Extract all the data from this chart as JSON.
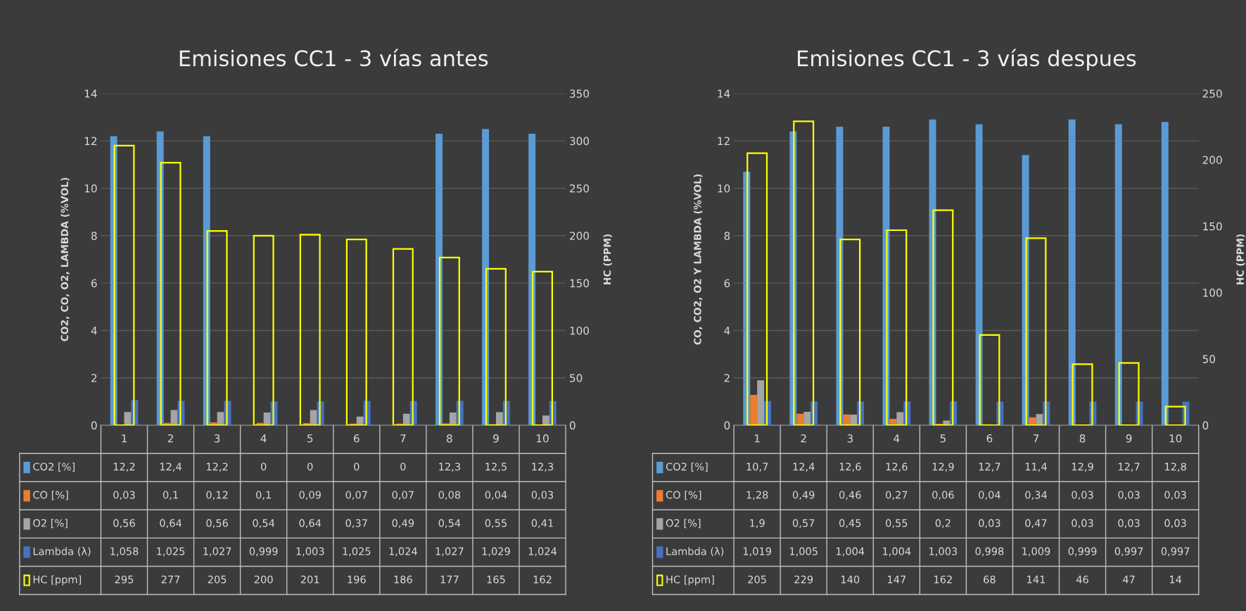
{
  "chart_data": [
    {
      "type": "bar",
      "title": "Emisiones CC1 - 3 vías antes",
      "ylabel": "CO2, CO, O2, LAMBDA (%VOL)",
      "y2label": "HC (PPM)",
      "categories": [
        "1",
        "2",
        "3",
        "4",
        "5",
        "6",
        "7",
        "8",
        "9",
        "10"
      ],
      "ylim": [
        0,
        14
      ],
      "yticks": [
        0,
        2,
        4,
        6,
        8,
        10,
        12,
        14
      ],
      "y2lim": [
        0,
        350
      ],
      "y2ticks": [
        0,
        50,
        100,
        150,
        200,
        250,
        300,
        350
      ],
      "grid": "y",
      "legend": "bottom",
      "series": [
        {
          "name": "CO2 [%]",
          "color": "#5b9bd5",
          "values": [
            12.2,
            12.4,
            12.2,
            0,
            0,
            0,
            0,
            12.3,
            12.5,
            12.3
          ],
          "value_labels": [
            "12,2",
            "12,4",
            "12,2",
            "0",
            "0",
            "0",
            "0",
            "12,3",
            "12,5",
            "12,3"
          ]
        },
        {
          "name": "CO [%]",
          "color": "#ed7d31",
          "values": [
            0.03,
            0.1,
            0.12,
            0.1,
            0.09,
            0.07,
            0.07,
            0.08,
            0.04,
            0.03
          ],
          "value_labels": [
            "0,03",
            "0,1",
            "0,12",
            "0,1",
            "0,09",
            "0,07",
            "0,07",
            "0,08",
            "0,04",
            "0,03"
          ]
        },
        {
          "name": "O2 [%]",
          "color": "#a5a5a5",
          "values": [
            0.56,
            0.64,
            0.56,
            0.54,
            0.64,
            0.37,
            0.49,
            0.54,
            0.55,
            0.41
          ],
          "value_labels": [
            "0,56",
            "0,64",
            "0,56",
            "0,54",
            "0,64",
            "0,37",
            "0,49",
            "0,54",
            "0,55",
            "0,41"
          ]
        },
        {
          "name": "Lambda (λ)",
          "color": "#4472c4",
          "values": [
            1.058,
            1.025,
            1.027,
            0.999,
            1.003,
            1.025,
            1.024,
            1.027,
            1.029,
            1.024
          ],
          "value_labels": [
            "1,058",
            "1,025",
            "1,027",
            "0,999",
            "1,003",
            "1,025",
            "1,024",
            "1,027",
            "1,029",
            "1,024"
          ]
        },
        {
          "name": "HC [ppm]",
          "color": "#ffff00",
          "axis": "y2",
          "values": [
            295,
            277,
            205,
            200,
            201,
            196,
            186,
            177,
            165,
            162
          ],
          "value_labels": [
            "295",
            "277",
            "205",
            "200",
            "201",
            "196",
            "186",
            "177",
            "165",
            "162"
          ]
        }
      ]
    },
    {
      "type": "bar",
      "title": "Emisiones CC1 - 3 vías despues",
      "ylabel": "CO, CO2, O2 Y LAMBDA (%VOL)",
      "y2label": "HC (PPM)",
      "categories": [
        "1",
        "2",
        "3",
        "4",
        "5",
        "6",
        "7",
        "8",
        "9",
        "10"
      ],
      "ylim": [
        0,
        14
      ],
      "yticks": [
        0,
        2,
        4,
        6,
        8,
        10,
        12,
        14
      ],
      "y2lim": [
        0,
        250
      ],
      "y2ticks": [
        0,
        50,
        100,
        150,
        200,
        250
      ],
      "grid": "y",
      "legend": "bottom",
      "series": [
        {
          "name": "CO2 [%]",
          "color": "#5b9bd5",
          "values": [
            10.7,
            12.4,
            12.6,
            12.6,
            12.9,
            12.7,
            11.4,
            12.9,
            12.7,
            12.8
          ],
          "value_labels": [
            "10,7",
            "12,4",
            "12,6",
            "12,6",
            "12,9",
            "12,7",
            "11,4",
            "12,9",
            "12,7",
            "12,8"
          ]
        },
        {
          "name": "CO [%]",
          "color": "#ed7d31",
          "values": [
            1.28,
            0.49,
            0.46,
            0.27,
            0.06,
            0.04,
            0.34,
            0.03,
            0.03,
            0.03
          ],
          "value_labels": [
            "1,28",
            "0,49",
            "0,46",
            "0,27",
            "0,06",
            "0,04",
            "0,34",
            "0,03",
            "0,03",
            "0,03"
          ]
        },
        {
          "name": "O2 [%]",
          "color": "#a5a5a5",
          "values": [
            1.9,
            0.57,
            0.45,
            0.55,
            0.2,
            0.03,
            0.47,
            0.03,
            0.03,
            0.03
          ],
          "value_labels": [
            "1,9",
            "0,57",
            "0,45",
            "0,55",
            "0,2",
            "0,03",
            "0,47",
            "0,03",
            "0,03",
            "0,03"
          ]
        },
        {
          "name": "Lambda (λ)",
          "color": "#4472c4",
          "values": [
            1.019,
            1.005,
            1.004,
            1.004,
            1.003,
            0.998,
            1.009,
            0.999,
            0.997,
            0.997
          ],
          "value_labels": [
            "1,019",
            "1,005",
            "1,004",
            "1,004",
            "1,003",
            "0,998",
            "1,009",
            "0,999",
            "0,997",
            "0,997"
          ]
        },
        {
          "name": "HC [ppm]",
          "color": "#ffff00",
          "axis": "y2",
          "values": [
            205,
            229,
            140,
            147,
            162,
            68,
            141,
            46,
            47,
            14
          ],
          "value_labels": [
            "205",
            "229",
            "140",
            "147",
            "162",
            "68",
            "141",
            "46",
            "47",
            "14"
          ]
        }
      ]
    }
  ]
}
